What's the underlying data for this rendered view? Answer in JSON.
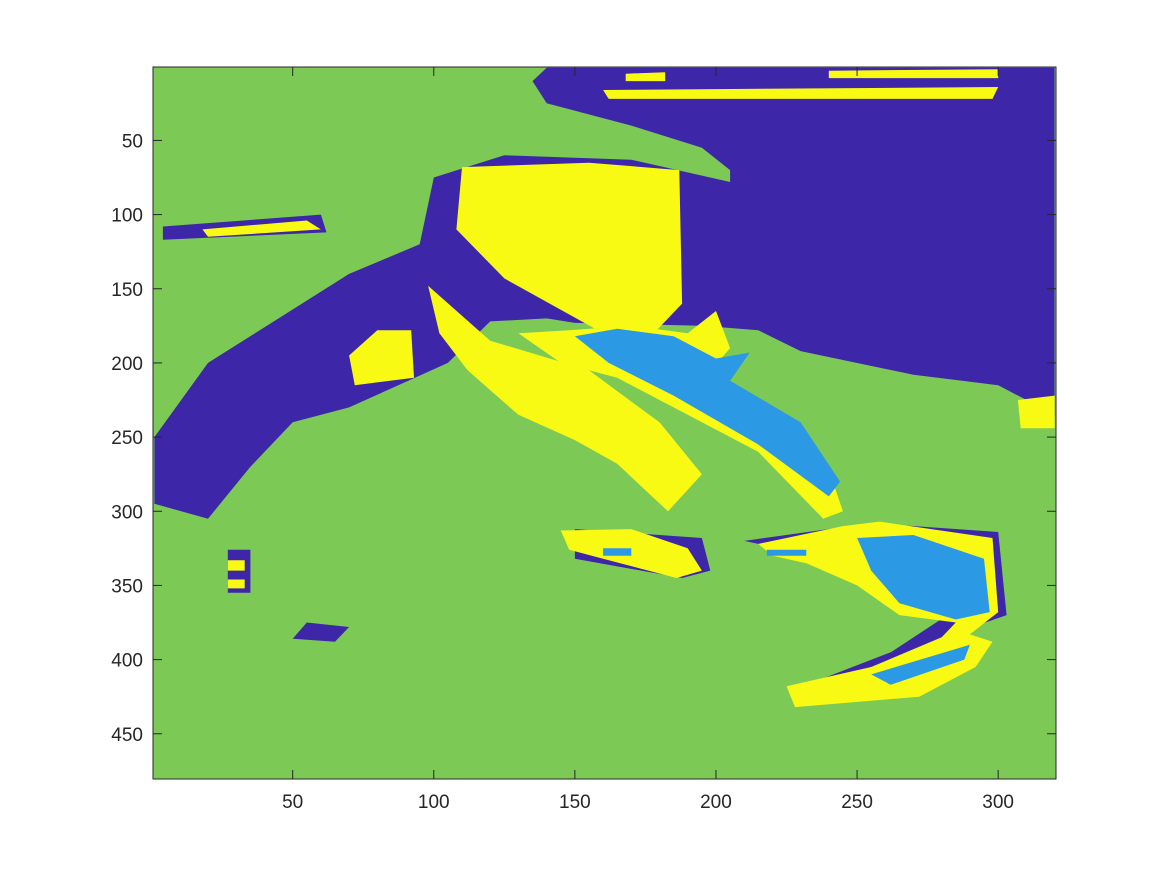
{
  "chart_data": {
    "type": "heatmap",
    "title": "",
    "xlabel": "",
    "ylabel": "",
    "xlim": [
      0.5,
      320.5
    ],
    "ylim": [
      0.5,
      480.5
    ],
    "y_direction": "reverse",
    "grid": false,
    "colorbar": false,
    "x_ticks": [
      50,
      100,
      150,
      200,
      250,
      300
    ],
    "y_ticks": [
      50,
      100,
      150,
      200,
      250,
      300,
      350,
      400,
      450
    ],
    "x_tick_labels": [
      "50",
      "100",
      "150",
      "200",
      "250",
      "300"
    ],
    "y_tick_labels": [
      "50",
      "100",
      "150",
      "200",
      "250",
      "300",
      "350",
      "400",
      "450"
    ],
    "cluster_colors": [
      "#3e26a8",
      "#2c99e5",
      "#7cc956",
      "#f9fa14"
    ],
    "background_cluster_color": "#7cc956",
    "regions": [
      {
        "cluster": 0,
        "color": "#3e26a8",
        "polygons": [
          [
            [
              140,
              1
            ],
            [
              320,
              1
            ],
            [
              320,
              235
            ],
            [
              300,
              215
            ],
            [
              270,
              208
            ],
            [
              230,
              192
            ],
            [
              215,
              178
            ],
            [
              195,
              175
            ],
            [
              150,
              173
            ],
            [
              140,
              170
            ],
            [
              120,
              172
            ],
            [
              105,
              200
            ],
            [
              70,
              230
            ],
            [
              50,
              240
            ],
            [
              35,
              270
            ],
            [
              20,
              305
            ],
            [
              1,
              295
            ],
            [
              1,
              250
            ],
            [
              20,
              200
            ],
            [
              45,
              170
            ],
            [
              70,
              140
            ],
            [
              95,
              120
            ],
            [
              100,
              75
            ],
            [
              125,
              60
            ],
            [
              170,
              63
            ],
            [
              205,
              78
            ],
            [
              205,
              70
            ],
            [
              195,
              55
            ],
            [
              170,
              40
            ],
            [
              140,
              25
            ],
            [
              135,
              10
            ]
          ],
          [
            [
              4,
              108
            ],
            [
              60,
              100
            ],
            [
              62,
              112
            ],
            [
              4,
              117
            ]
          ],
          [
            [
              55,
              375
            ],
            [
              70,
              378
            ],
            [
              65,
              388
            ],
            [
              50,
              386
            ]
          ],
          [
            [
              27,
              326
            ],
            [
              35,
              326
            ],
            [
              35,
              355
            ],
            [
              27,
              355
            ]
          ],
          [
            [
              150,
              312
            ],
            [
              195,
              318
            ],
            [
              198,
              340
            ],
            [
              188,
              345
            ],
            [
              150,
              332
            ]
          ],
          [
            [
              210,
              320
            ],
            [
              255,
              308
            ],
            [
              300,
              314
            ],
            [
              303,
              370
            ],
            [
              285,
              382
            ],
            [
              292,
              400
            ],
            [
              265,
              425
            ],
            [
              230,
              430
            ],
            [
              228,
              420
            ],
            [
              262,
              395
            ],
            [
              282,
              370
            ],
            [
              262,
              342
            ],
            [
              240,
              332
            ]
          ]
        ]
      },
      {
        "cluster": 3,
        "color": "#f9fa14",
        "polygons": [
          [
            [
              110,
              68
            ],
            [
              155,
              65
            ],
            [
              187,
              70
            ],
            [
              188,
              160
            ],
            [
              178,
              180
            ],
            [
              160,
              180
            ],
            [
              125,
              143
            ],
            [
              108,
              110
            ]
          ],
          [
            [
              98,
              148
            ],
            [
              120,
              185
            ],
            [
              155,
              205
            ],
            [
              180,
              240
            ],
            [
              195,
              275
            ],
            [
              183,
              300
            ],
            [
              165,
              268
            ],
            [
              150,
              252
            ],
            [
              130,
              235
            ],
            [
              112,
              205
            ],
            [
              102,
              180
            ]
          ],
          [
            [
              80,
              178
            ],
            [
              92,
              178
            ],
            [
              93,
              210
            ],
            [
              72,
              215
            ],
            [
              70,
              195
            ]
          ],
          [
            [
              130,
              180
            ],
            [
              148,
              178
            ],
            [
              170,
              175
            ],
            [
              190,
              180
            ],
            [
              200,
              165
            ],
            [
              205,
              190
            ],
            [
              195,
              212
            ],
            [
              215,
              225
            ],
            [
              240,
              272
            ],
            [
              245,
              300
            ],
            [
              238,
              305
            ],
            [
              215,
              260
            ],
            [
              190,
              235
            ],
            [
              165,
              210
            ],
            [
              145,
              200
            ]
          ],
          [
            [
              145,
              313
            ],
            [
              170,
              312
            ],
            [
              190,
              325
            ],
            [
              195,
              340
            ],
            [
              186,
              345
            ],
            [
              160,
              332
            ],
            [
              148,
              326
            ]
          ],
          [
            [
              215,
              322
            ],
            [
              245,
              310
            ],
            [
              258,
              307
            ],
            [
              298,
              318
            ],
            [
              300,
              368
            ],
            [
              290,
              383
            ],
            [
              298,
              388
            ],
            [
              292,
              405
            ],
            [
              272,
              425
            ],
            [
              228,
              432
            ],
            [
              225,
              418
            ],
            [
              255,
              405
            ],
            [
              280,
              385
            ],
            [
              285,
              375
            ],
            [
              265,
              370
            ],
            [
              250,
              350
            ],
            [
              232,
              335
            ],
            [
              220,
              330
            ]
          ],
          [
            [
              18,
              110
            ],
            [
              55,
              104
            ],
            [
              60,
              110
            ],
            [
              20,
              115
            ]
          ],
          [
            [
              168,
              5
            ],
            [
              182,
              4
            ],
            [
              182,
              10
            ],
            [
              168,
              10
            ]
          ],
          [
            [
              240,
              3
            ],
            [
              300,
              2
            ],
            [
              300,
              8
            ],
            [
              240,
              8
            ]
          ],
          [
            [
              160,
              16
            ],
            [
              300,
              14
            ],
            [
              298,
              22
            ],
            [
              162,
              22
            ]
          ],
          [
            [
              307,
              225
            ],
            [
              320,
              222
            ],
            [
              320,
              244
            ],
            [
              308,
              244
            ]
          ],
          [
            [
              27,
              333
            ],
            [
              33,
              333
            ],
            [
              33,
              340
            ],
            [
              27,
              340
            ]
          ],
          [
            [
              27,
              346
            ],
            [
              33,
              346
            ],
            [
              33,
              352
            ],
            [
              27,
              352
            ]
          ]
        ]
      },
      {
        "cluster": 1,
        "color": "#2c99e5",
        "polygons": [
          [
            [
              150,
              182
            ],
            [
              165,
              177
            ],
            [
              185,
              182
            ],
            [
              200,
              197
            ],
            [
              212,
              193
            ],
            [
              205,
              212
            ],
            [
              230,
              240
            ],
            [
              244,
              280
            ],
            [
              240,
              290
            ],
            [
              215,
              255
            ],
            [
              185,
              222
            ],
            [
              162,
              200
            ]
          ],
          [
            [
              250,
              318
            ],
            [
              270,
              316
            ],
            [
              295,
              332
            ],
            [
              297,
              368
            ],
            [
              285,
              373
            ],
            [
              265,
              362
            ],
            [
              255,
              340
            ]
          ],
          [
            [
              255,
              410
            ],
            [
              290,
              390
            ],
            [
              288,
              400
            ],
            [
              262,
              417
            ]
          ],
          [
            [
              160,
              325
            ],
            [
              170,
              325
            ],
            [
              170,
              330
            ],
            [
              160,
              330
            ]
          ],
          [
            [
              218,
              326
            ],
            [
              232,
              326
            ],
            [
              232,
              330
            ],
            [
              218,
              330
            ]
          ]
        ]
      }
    ]
  }
}
